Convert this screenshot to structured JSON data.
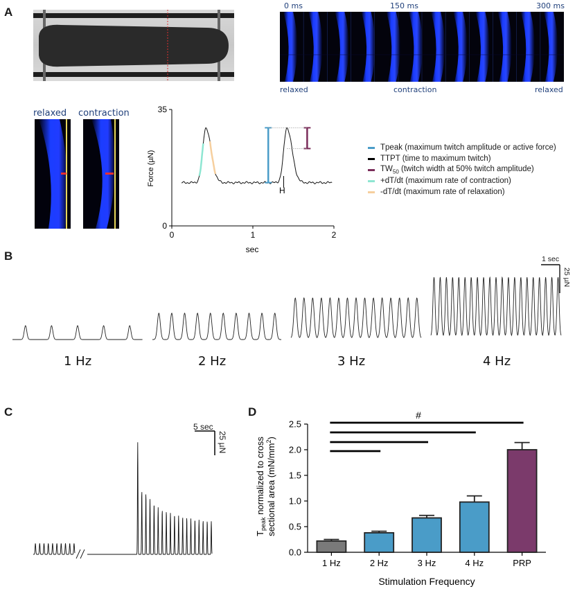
{
  "panels": {
    "a": "A",
    "b": "B",
    "c": "C",
    "d": "D"
  },
  "panel_a": {
    "timeline": {
      "t0": "0 ms",
      "t1": "150 ms",
      "t2": "300 ms",
      "states": [
        "relaxed",
        "contraction",
        "relaxed"
      ]
    },
    "zoom_labels": [
      "relaxed",
      "contraction"
    ],
    "marker_h": "H",
    "colors": {
      "tpeak": "#4a9cc8",
      "ttpt": "#000000",
      "tw50": "#7b2d5a",
      "plus_dtdt": "#8ee6d2",
      "minus_dtdt": "#f6cf9e"
    },
    "legend": {
      "tpeak": "Tpeak (maximum twitch amplitude or active force)",
      "ttpt": "TTPT (time to maximum twitch)",
      "tw50_a": "TW",
      "tw50_sub": "50",
      "tw50_b": " (twitch width at 50% twitch amplitude)",
      "plus": "+dT/dt (maximum rate of contraction)",
      "minus": "-dT/dt (maximum rate of relaxation)"
    }
  },
  "panel_b": {
    "scale_time": "1 sec",
    "scale_force": "25 µN",
    "labels": [
      "1 Hz",
      "2 Hz",
      "3 Hz",
      "4 Hz"
    ]
  },
  "panel_c": {
    "scale_time": "5 sec",
    "scale_force": "25 µN"
  },
  "chart_data": [
    {
      "type": "line",
      "ylabel": "Force (µN)",
      "xlabel": "sec",
      "xlim": [
        0,
        2
      ],
      "ylim": [
        0,
        35
      ],
      "x_ticks": [
        "0",
        "1",
        "2"
      ],
      "y_ticks": [
        "0",
        "35"
      ],
      "baseline": 13,
      "peaks": [
        {
          "x": 0.42,
          "y": 29.5
        },
        {
          "x": 1.42,
          "y": 29.5
        }
      ]
    },
    {
      "type": "bar",
      "categories": [
        "1 Hz",
        "2 Hz",
        "3 Hz",
        "4 Hz",
        "PRP"
      ],
      "values": [
        0.22,
        0.38,
        0.67,
        0.98,
        2.0
      ],
      "errors": [
        0.03,
        0.03,
        0.05,
        0.12,
        0.14
      ],
      "colors": [
        "#7a7a7a",
        "#4a9cc8",
        "#4a9cc8",
        "#4a9cc8",
        "#7b3a6b"
      ],
      "ylim": [
        0,
        2.5
      ],
      "y_ticks": [
        "0.0",
        "0.5",
        "1.0",
        "1.5",
        "2.0",
        "2.5"
      ],
      "ylabel_main": "T",
      "ylabel_sub": "peak",
      "ylabel_line1": " normalized to cross",
      "ylabel_line2": "sectional area  (mN/mm",
      "ylabel_sup": "2",
      "ylabel_end": ")",
      "xlabel": "Stimulation Frequency",
      "annotation": "#",
      "comparison_bars": [
        [
          0,
          1
        ],
        [
          0,
          2
        ],
        [
          0,
          3
        ],
        [
          0,
          4
        ]
      ]
    }
  ]
}
